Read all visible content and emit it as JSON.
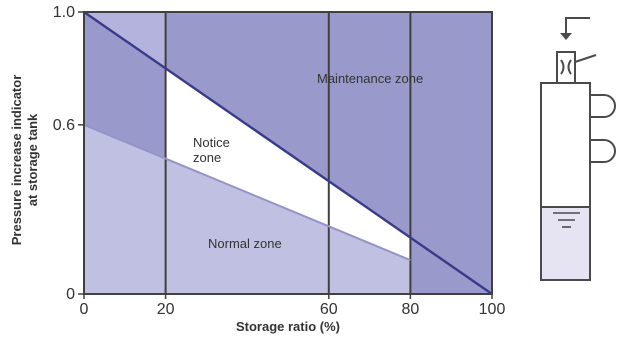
{
  "chart_data": {
    "type": "area",
    "title": "",
    "xlabel": "Storage ratio (%)",
    "ylabel_lines": [
      "Pressure increase indicator",
      "at storage tank"
    ],
    "xlim": [
      0,
      100
    ],
    "ylim": [
      0,
      1.0
    ],
    "x_ticks": [
      {
        "value": 0,
        "label": "0"
      },
      {
        "value": 20,
        "label": "20"
      },
      {
        "value": 60,
        "label": "60"
      },
      {
        "value": 80,
        "label": "80"
      },
      {
        "value": 100,
        "label": "100"
      }
    ],
    "y_ticks": [
      {
        "value": 0,
        "label": "0"
      },
      {
        "value": 0.6,
        "label": "0.6"
      },
      {
        "value": 1.0,
        "label": "1.0"
      }
    ],
    "vertical_lines_x": [
      20,
      60,
      80
    ],
    "series": [
      {
        "key": "maintenance",
        "x": [
          0,
          100
        ],
        "y": [
          1.0,
          0.0
        ]
      },
      {
        "key": "normal",
        "x": [
          0,
          80
        ],
        "y": [
          0.6,
          0.12
        ]
      }
    ],
    "zones": [
      {
        "label_lines": [
          "Maintenance zone"
        ]
      },
      {
        "label_lines": [
          "Notice",
          "zone"
        ]
      },
      {
        "label_lines": [
          "Normal zone"
        ]
      }
    ],
    "grid": false
  },
  "colors": {
    "maintenance_fill": "#9999cc",
    "light_fill": "#b3b3dd",
    "normal_fill": "#c0c0e2",
    "notice_fill": "#ffffff",
    "upper_line": "#3a3a8c",
    "lower_line": "#9494c8",
    "frame": "#404040",
    "tank_liquid": "#e6e3f2"
  }
}
